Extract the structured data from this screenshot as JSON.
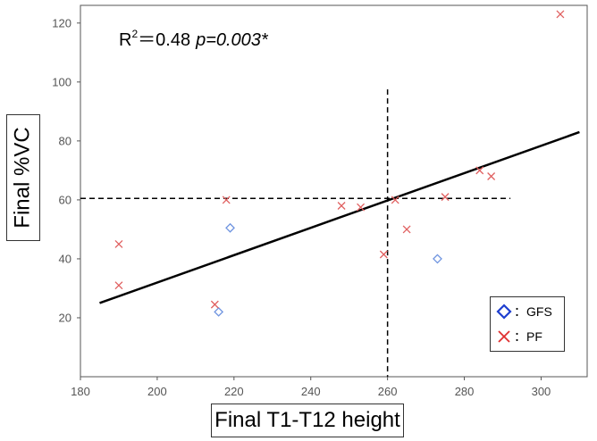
{
  "chart_data": {
    "type": "scatter",
    "xlabel": "Final T1-T12 height",
    "ylabel": "Final %VC",
    "xlim": [
      180,
      312
    ],
    "ylim": [
      0,
      126
    ],
    "xticks": [
      180,
      200,
      220,
      240,
      260,
      280,
      300
    ],
    "yticks": [
      20,
      40,
      60,
      80,
      100,
      120
    ],
    "annotation": {
      "r2_label": "R",
      "r2_sup": "2",
      "r2_value": "＝0.48",
      "p_value": "p=0.003*"
    },
    "series": [
      {
        "name": "GFS",
        "marker": "diamond",
        "color": "#6f94e0",
        "points": [
          [
            216,
            22
          ],
          [
            219,
            50.5
          ],
          [
            273,
            40
          ]
        ]
      },
      {
        "name": "PF",
        "marker": "x",
        "color": "#e06060",
        "points": [
          [
            190,
            45
          ],
          [
            190,
            31
          ],
          [
            215,
            24.5
          ],
          [
            218,
            60
          ],
          [
            248,
            58
          ],
          [
            253,
            57.5
          ],
          [
            259,
            41.5
          ],
          [
            262,
            60
          ],
          [
            265,
            50
          ],
          [
            275,
            61
          ],
          [
            284,
            70
          ],
          [
            287,
            68
          ],
          [
            305,
            123
          ]
        ]
      }
    ],
    "regression_line": {
      "x": [
        185,
        310
      ],
      "y": [
        25,
        83
      ]
    },
    "reference_lines": {
      "vertical_x": 260,
      "horizontal_y": 60.5
    },
    "legend": {
      "position": "bottom-right",
      "entries": [
        {
          "label": "：GFS",
          "marker": "diamond",
          "color": "#1f3fd0"
        },
        {
          "label": "：PF",
          "marker": "x",
          "color": "#e03030"
        }
      ]
    }
  }
}
